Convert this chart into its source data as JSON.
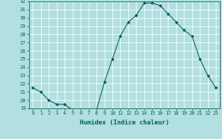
{
  "x": [
    0,
    1,
    2,
    3,
    4,
    5,
    6,
    7,
    8,
    9,
    10,
    11,
    12,
    13,
    14,
    15,
    16,
    17,
    18,
    19,
    20,
    21,
    22,
    23
  ],
  "y": [
    21.5,
    21.0,
    20.0,
    19.5,
    19.5,
    18.8,
    18.8,
    18.5,
    18.8,
    22.2,
    25.0,
    27.8,
    29.5,
    30.3,
    31.8,
    31.8,
    31.5,
    30.5,
    29.5,
    28.5,
    27.8,
    25.0,
    23.0,
    21.5
  ],
  "line_color": "#005f5f",
  "marker": "D",
  "marker_size": 2.0,
  "bg_color": "#b2dfdf",
  "grid_color": "#ffffff",
  "xlabel": "Humidex (Indice chaleur)",
  "ylim": [
    19,
    32
  ],
  "xlim": [
    -0.5,
    23.5
  ],
  "yticks": [
    19,
    20,
    21,
    22,
    23,
    24,
    25,
    26,
    27,
    28,
    29,
    30,
    31,
    32
  ],
  "xticks": [
    0,
    1,
    2,
    3,
    4,
    5,
    6,
    7,
    8,
    9,
    10,
    11,
    12,
    13,
    14,
    15,
    16,
    17,
    18,
    19,
    20,
    21,
    22,
    23
  ],
  "tick_fontsize": 5.0,
  "label_fontsize": 6.5
}
